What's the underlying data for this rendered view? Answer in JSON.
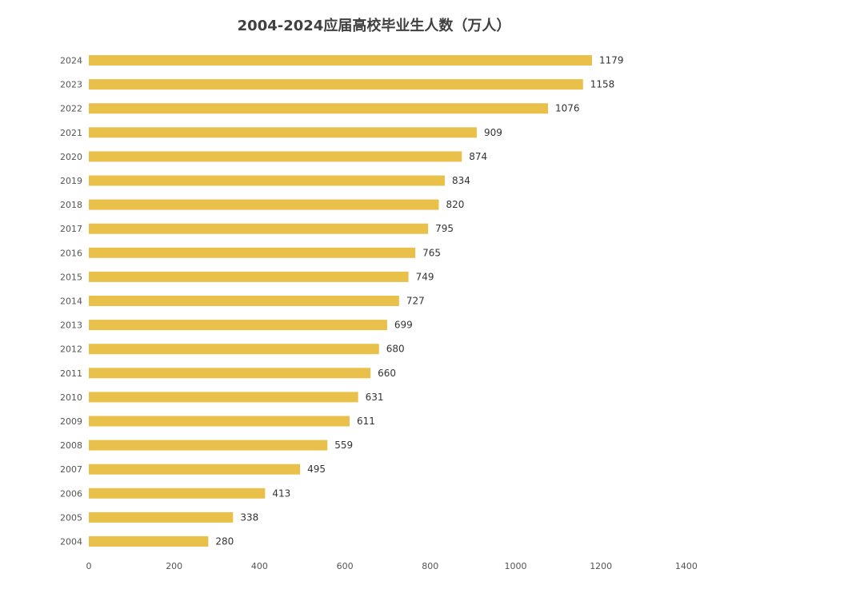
{
  "chart_data": {
    "type": "bar",
    "orientation": "horizontal",
    "title": "2004-2024应届高校毕业生人数（万人）",
    "xlabel": "",
    "ylabel": "",
    "categories": [
      "2024",
      "2023",
      "2022",
      "2021",
      "2020",
      "2019",
      "2018",
      "2017",
      "2016",
      "2015",
      "2014",
      "2013",
      "2012",
      "2011",
      "2010",
      "2009",
      "2008",
      "2007",
      "2006",
      "2005",
      "2004"
    ],
    "values": [
      1179,
      1158,
      1076,
      909,
      874,
      834,
      820,
      795,
      765,
      749,
      727,
      699,
      680,
      660,
      631,
      611,
      559,
      495,
      413,
      338,
      280
    ],
    "xlim": [
      0,
      1400
    ],
    "xticks": [
      "0",
      "200",
      "400",
      "600",
      "800",
      "1000",
      "1200",
      "1400"
    ],
    "grid": false,
    "legend": "none",
    "bar_color": "#E8C04A",
    "label_color": "#333333",
    "tick_color": "#555555",
    "title_color": "#404040"
  }
}
